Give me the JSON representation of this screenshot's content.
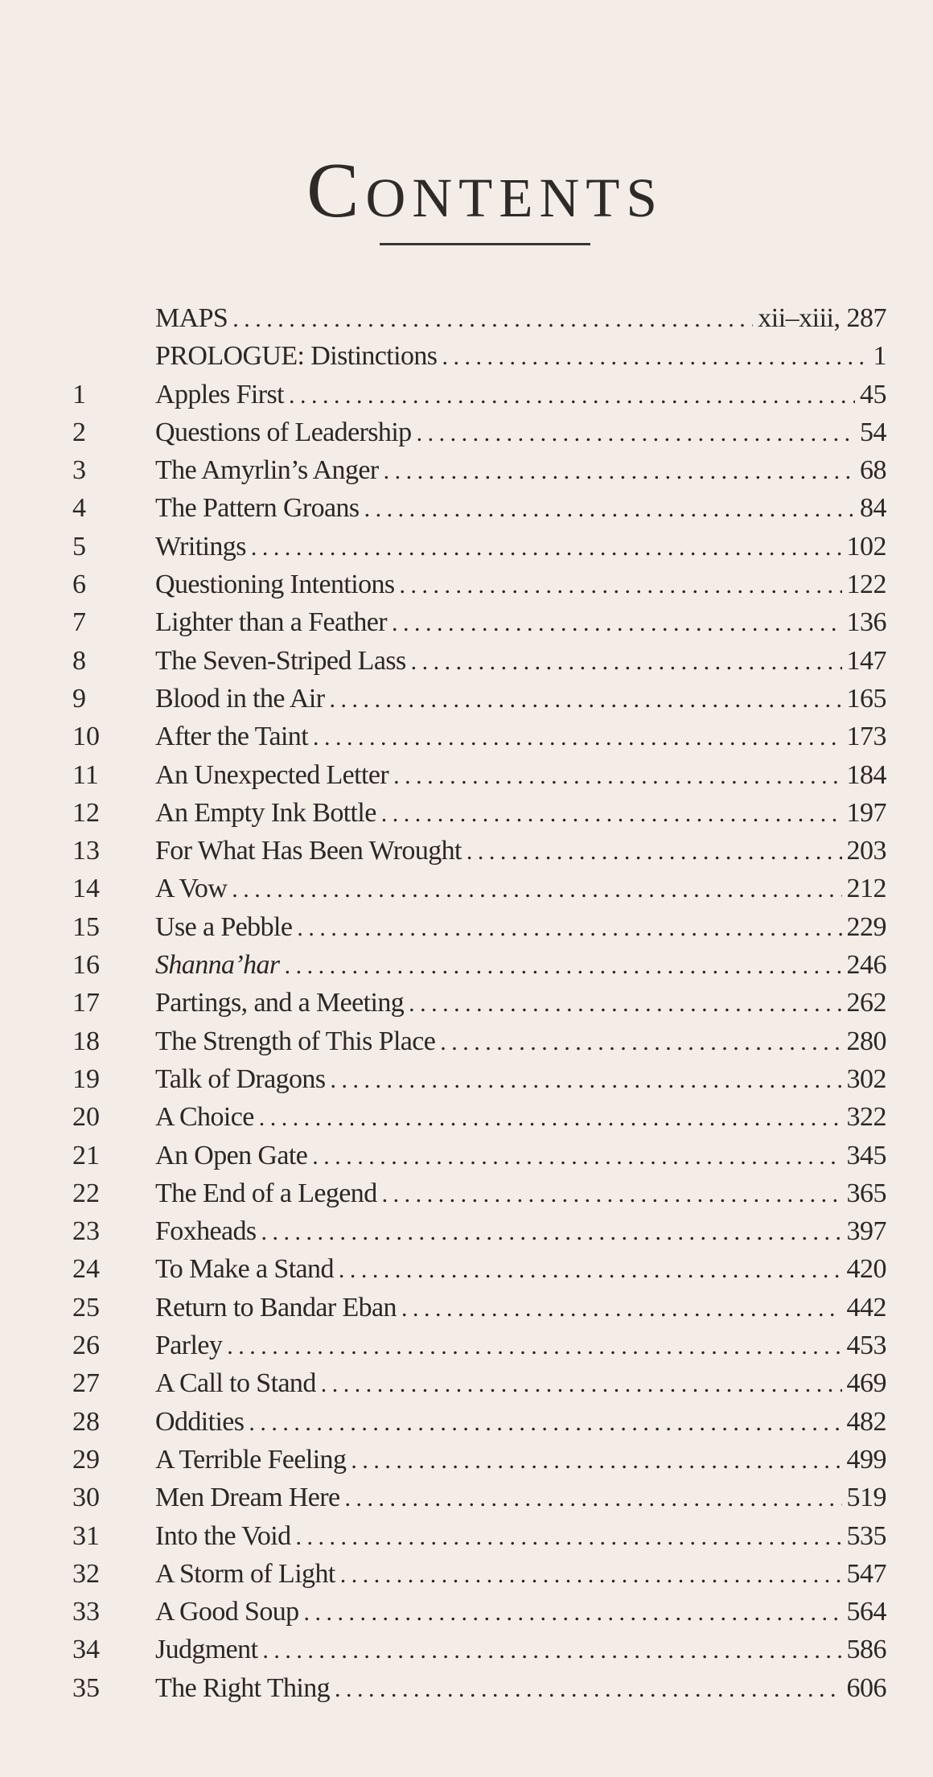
{
  "heading": "Contents",
  "entries": [
    {
      "num": "",
      "label": "MAPS",
      "page": "xii–xiii, 287"
    },
    {
      "num": "",
      "label": "PROLOGUE: Distinctions",
      "page": "1"
    },
    {
      "num": "1",
      "label": "Apples First",
      "page": "45"
    },
    {
      "num": "2",
      "label": "Questions of Leadership",
      "page": "54"
    },
    {
      "num": "3",
      "label": "The Amyrlin’s Anger",
      "page": "68"
    },
    {
      "num": "4",
      "label": "The Pattern Groans",
      "page": "84"
    },
    {
      "num": "5",
      "label": "Writings",
      "page": "102"
    },
    {
      "num": "6",
      "label": "Questioning Intentions",
      "page": "122"
    },
    {
      "num": "7",
      "label": "Lighter than a Feather",
      "page": "136"
    },
    {
      "num": "8",
      "label": "The Seven-Striped Lass",
      "page": "147"
    },
    {
      "num": "9",
      "label": "Blood in the Air",
      "page": "165"
    },
    {
      "num": "10",
      "label": "After the Taint",
      "page": "173"
    },
    {
      "num": "11",
      "label": "An Unexpected Letter",
      "page": "184"
    },
    {
      "num": "12",
      "label": "An Empty Ink Bottle",
      "page": "197"
    },
    {
      "num": "13",
      "label": "For What Has Been Wrought",
      "page": "203"
    },
    {
      "num": "14",
      "label": "A Vow",
      "page": "212"
    },
    {
      "num": "15",
      "label": "Use a Pebble",
      "page": "229"
    },
    {
      "num": "16",
      "label": "Shanna’har",
      "page": "246",
      "italic": true
    },
    {
      "num": "17",
      "label": "Partings, and a Meeting",
      "page": "262"
    },
    {
      "num": "18",
      "label": "The Strength of This Place",
      "page": "280"
    },
    {
      "num": "19",
      "label": "Talk of Dragons",
      "page": "302"
    },
    {
      "num": "20",
      "label": "A Choice",
      "page": "322"
    },
    {
      "num": "21",
      "label": "An Open Gate",
      "page": "345"
    },
    {
      "num": "22",
      "label": "The End of a Legend",
      "page": "365"
    },
    {
      "num": "23",
      "label": "Foxheads",
      "page": "397"
    },
    {
      "num": "24",
      "label": "To Make a Stand",
      "page": "420"
    },
    {
      "num": "25",
      "label": "Return to Bandar Eban",
      "page": "442"
    },
    {
      "num": "26",
      "label": "Parley",
      "page": "453"
    },
    {
      "num": "27",
      "label": "A Call to Stand",
      "page": "469"
    },
    {
      "num": "28",
      "label": "Oddities",
      "page": "482"
    },
    {
      "num": "29",
      "label": "A Terrible Feeling",
      "page": "499"
    },
    {
      "num": "30",
      "label": "Men Dream Here",
      "page": "519"
    },
    {
      "num": "31",
      "label": "Into the Void",
      "page": "535"
    },
    {
      "num": "32",
      "label": "A Storm of Light",
      "page": "547"
    },
    {
      "num": "33",
      "label": "A Good Soup",
      "page": "564"
    },
    {
      "num": "34",
      "label": "Judgment",
      "page": "586"
    },
    {
      "num": "35",
      "label": "The Right Thing",
      "page": "606"
    }
  ]
}
